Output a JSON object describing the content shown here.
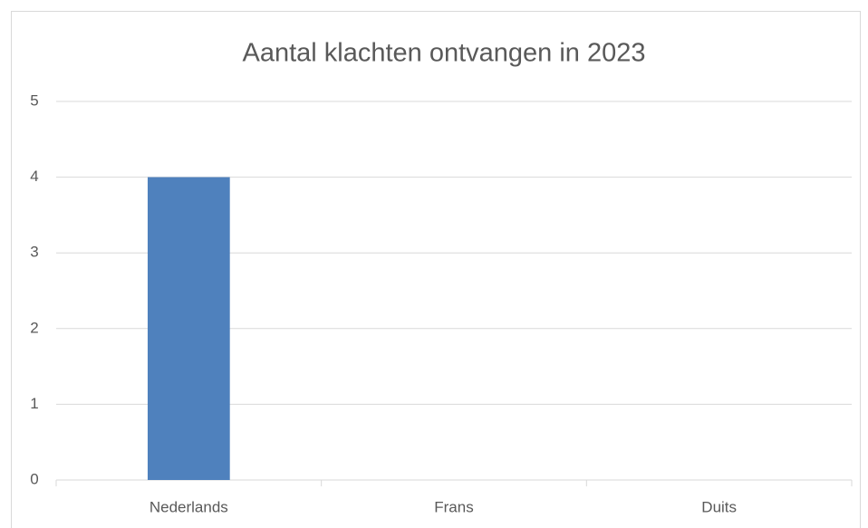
{
  "chart_data": {
    "type": "bar",
    "title": "Aantal klachten ontvangen in 2023",
    "categories": [
      "Nederlands",
      "Frans",
      "Duits"
    ],
    "values": [
      4,
      0,
      0
    ],
    "color": "#4f81bd",
    "ylim": [
      0,
      5
    ],
    "yticks": [
      0,
      1,
      2,
      3,
      4,
      5
    ],
    "grid": true
  }
}
